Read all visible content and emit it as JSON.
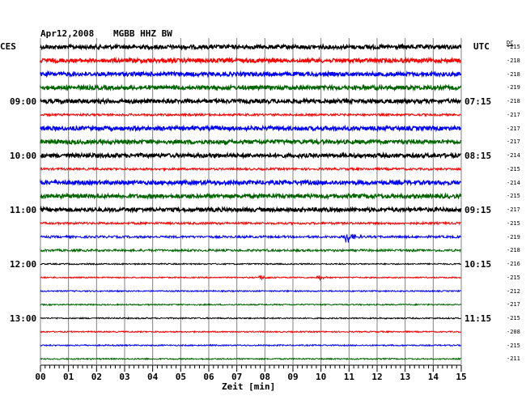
{
  "header": {
    "date": "Apr12,2008",
    "station": "MGBB HHZ BW",
    "left_zone": "CES",
    "right_zone": "UTC",
    "dc_label": "DC"
  },
  "left_times": [
    "09:00",
    "10:00",
    "11:00",
    "12:00",
    "13:00"
  ],
  "right_times": [
    "07:15",
    "08:15",
    "09:15",
    "10:15",
    "11:15"
  ],
  "xaxis_label": "Zeit [min]",
  "colors": {
    "black": "#000000",
    "red": "#ff0000",
    "blue": "#0000ff",
    "green": "#006400",
    "grid": "#808080"
  },
  "chart_data": {
    "type": "line",
    "x_ticks": [
      "00",
      "01",
      "02",
      "03",
      "04",
      "05",
      "06",
      "07",
      "08",
      "09",
      "10",
      "11",
      "12",
      "13",
      "14",
      "15"
    ],
    "xlim": [
      0,
      15
    ],
    "xlabel": "Zeit [min]",
    "trace_colors": [
      "black",
      "red",
      "blue",
      "green",
      "black",
      "red",
      "blue",
      "green",
      "black",
      "red",
      "blue",
      "green",
      "black",
      "red",
      "blue",
      "green",
      "black",
      "red",
      "blue",
      "green",
      "black",
      "red",
      "blue",
      "green"
    ],
    "dc_offsets": [
      "-215",
      "-218",
      "-218",
      "-219",
      "-218",
      "-217",
      "-217",
      "-217",
      "-214",
      "-215",
      "-214",
      "-215",
      "-217",
      "-215",
      "-219",
      "-218",
      "-216",
      "-215",
      "-212",
      "-217",
      "-215",
      "-208",
      "-215",
      "-211"
    ],
    "trace_amplitude": [
      "high",
      "high",
      "high",
      "high",
      "high",
      "medium",
      "high",
      "high",
      "high",
      "medium",
      "high",
      "high",
      "high",
      "medium",
      "medium",
      "medium",
      "low",
      "low",
      "low",
      "low",
      "low",
      "low",
      "low",
      "low"
    ],
    "events": [
      {
        "trace": 14,
        "minute": 10.9,
        "description": "burst"
      },
      {
        "trace": 17,
        "minute": 7.8,
        "description": "burst"
      },
      {
        "trace": 17,
        "minute": 9.9,
        "description": "burst"
      }
    ]
  }
}
